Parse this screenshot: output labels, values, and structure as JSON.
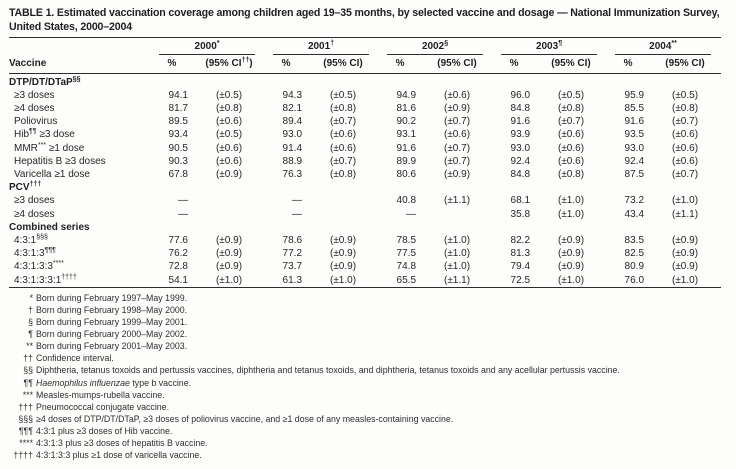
{
  "title": "TABLE 1. Estimated vaccination coverage among children aged 19–35 months, by selected vaccine and dosage — National Immunization Survey, United States, 2000–2004",
  "table": {
    "vaccine_header": "Vaccine",
    "years": [
      {
        "label": "2000",
        "sup": "*",
        "pct_label": "%",
        "ci_parts": [
          [
            "t",
            "(95% CI"
          ],
          [
            "s",
            "††"
          ],
          [
            "t",
            ")"
          ]
        ]
      },
      {
        "label": "2001",
        "sup": "†",
        "pct_label": "%",
        "ci_parts": [
          [
            "t",
            "(95% CI)"
          ]
        ]
      },
      {
        "label": "2002",
        "sup": "§",
        "pct_label": "%",
        "ci_parts": [
          [
            "t",
            "(95% CI)"
          ]
        ]
      },
      {
        "label": "2003",
        "sup": "¶",
        "pct_label": "%",
        "ci_parts": [
          [
            "t",
            "(95% CI)"
          ]
        ]
      },
      {
        "label": "2004",
        "sup": "**",
        "pct_label": "%",
        "ci_parts": [
          [
            "t",
            "(95% CI)"
          ]
        ]
      }
    ],
    "rows": [
      {
        "type": "section",
        "label_parts": [
          [
            "t",
            "DTP/DT/DTaP"
          ],
          [
            "s",
            "§§"
          ]
        ]
      },
      {
        "type": "data",
        "label_parts": [
          [
            "t",
            "≥3 doses"
          ]
        ],
        "values": [
          "94.1",
          "(±0.5)",
          "94.3",
          "(±0.5)",
          "94.9",
          "(±0.6)",
          "96.0",
          "(±0.5)",
          "95.9",
          "(±0.5)"
        ]
      },
      {
        "type": "data",
        "label_parts": [
          [
            "t",
            "≥4 doses"
          ]
        ],
        "values": [
          "81.7",
          "(±0.8)",
          "82.1",
          "(±0.8)",
          "81.6",
          "(±0.9)",
          "84.8",
          "(±0.8)",
          "85.5",
          "(±0.8)"
        ]
      },
      {
        "type": "data",
        "label_parts": [
          [
            "t",
            "Poliovirus"
          ]
        ],
        "values": [
          "89.5",
          "(±0.6)",
          "89.4",
          "(±0.7)",
          "90.2",
          "(±0.7)",
          "91.6",
          "(±0.7)",
          "91.6",
          "(±0.7)"
        ]
      },
      {
        "type": "data",
        "label_parts": [
          [
            "t",
            "Hib"
          ],
          [
            "s",
            "¶¶"
          ],
          [
            "t",
            " ≥3 dose"
          ]
        ],
        "values": [
          "93.4",
          "(±0.5)",
          "93.0",
          "(±0.6)",
          "93.1",
          "(±0.6)",
          "93.9",
          "(±0.6)",
          "93.5",
          "(±0.6)"
        ]
      },
      {
        "type": "data",
        "label_parts": [
          [
            "t",
            "MMR"
          ],
          [
            "s",
            "***"
          ],
          [
            "t",
            " ≥1 dose"
          ]
        ],
        "values": [
          "90.5",
          "(±0.6)",
          "91.4",
          "(±0.6)",
          "91.6",
          "(±0.7)",
          "93.0",
          "(±0.6)",
          "93.0",
          "(±0.6)"
        ]
      },
      {
        "type": "data",
        "label_parts": [
          [
            "t",
            "Hepatitis B ≥3 doses"
          ]
        ],
        "values": [
          "90.3",
          "(±0.6)",
          "88.9",
          "(±0.7)",
          "89.9",
          "(±0.7)",
          "92.4",
          "(±0.6)",
          "92.4",
          "(±0.6)"
        ]
      },
      {
        "type": "data",
        "label_parts": [
          [
            "t",
            "Varicella ≥1 dose"
          ]
        ],
        "values": [
          "67.8",
          "(±0.9)",
          "76.3",
          "(±0.8)",
          "80.6",
          "(±0.9)",
          "84.8",
          "(±0.8)",
          "87.5",
          "(±0.7)"
        ]
      },
      {
        "type": "section",
        "label_parts": [
          [
            "t",
            "PCV"
          ],
          [
            "s",
            "†††"
          ]
        ]
      },
      {
        "type": "data",
        "label_parts": [
          [
            "t",
            "≥3 doses"
          ]
        ],
        "values": [
          "—",
          "",
          "—",
          "",
          "40.8",
          "(±1.1)",
          "68.1",
          "(±1.0)",
          "73.2",
          "(±1.0)"
        ]
      },
      {
        "type": "data",
        "label_parts": [
          [
            "t",
            "≥4 doses"
          ]
        ],
        "values": [
          "—",
          "",
          "—",
          "",
          "—",
          "",
          "35.8",
          "(±1.0)",
          "43.4",
          "(±1.1)"
        ]
      },
      {
        "type": "section",
        "label_parts": [
          [
            "t",
            "Combined series"
          ]
        ]
      },
      {
        "type": "data",
        "label_parts": [
          [
            "t",
            "4:3:1"
          ],
          [
            "s",
            "§§§"
          ]
        ],
        "values": [
          "77.6",
          "(±0.9)",
          "78.6",
          "(±0.9)",
          "78.5",
          "(±1.0)",
          "82.2",
          "(±0.9)",
          "83.5",
          "(±0.9)"
        ]
      },
      {
        "type": "data",
        "label_parts": [
          [
            "t",
            "4:3:1:3"
          ],
          [
            "s",
            "¶¶¶"
          ]
        ],
        "values": [
          "76.2",
          "(±0.9)",
          "77.2",
          "(±0.9)",
          "77.5",
          "(±1.0)",
          "81.3",
          "(±0.9)",
          "82.5",
          "(±0.9)"
        ]
      },
      {
        "type": "data",
        "label_parts": [
          [
            "t",
            "4:3:1:3:3"
          ],
          [
            "s",
            "****"
          ]
        ],
        "values": [
          "72.8",
          "(±0.9)",
          "73.7",
          "(±0.9)",
          "74.8",
          "(±1.0)",
          "79.4",
          "(±0.9)",
          "80.9",
          "(±0.9)"
        ]
      },
      {
        "type": "data",
        "label_parts": [
          [
            "t",
            "4:3:1:3:3:1"
          ],
          [
            "s",
            "††††"
          ]
        ],
        "values": [
          "54.1",
          "(±1.0)",
          "61.3",
          "(±1.0)",
          "65.5",
          "(±1.1)",
          "72.5",
          "(±1.0)",
          "76.0",
          "(±1.0)"
        ]
      }
    ]
  },
  "footnotes": [
    {
      "marker": "*",
      "parts": [
        [
          "t",
          "Born during February 1997–May 1999."
        ]
      ]
    },
    {
      "marker": "†",
      "parts": [
        [
          "t",
          "Born during February 1998–May 2000."
        ]
      ]
    },
    {
      "marker": "§",
      "parts": [
        [
          "t",
          "Born during February 1999–May 2001."
        ]
      ]
    },
    {
      "marker": "¶",
      "parts": [
        [
          "t",
          "Born during February 2000–May 2002."
        ]
      ]
    },
    {
      "marker": "**",
      "parts": [
        [
          "t",
          "Born during February 2001–May 2003."
        ]
      ]
    },
    {
      "marker": "††",
      "parts": [
        [
          "t",
          "Confidence interval."
        ]
      ]
    },
    {
      "marker": "§§",
      "parts": [
        [
          "t",
          "Diphtheria, tetanus toxoids and pertussis vaccines, diphtheria and tetanus toxoids, and diphtheria, tetanus toxoids and any acellular pertussis vaccine."
        ]
      ]
    },
    {
      "marker": "¶¶",
      "parts": [
        [
          "i",
          "Haemophilus influenzae"
        ],
        [
          "t",
          " type b vaccine."
        ]
      ]
    },
    {
      "marker": "***",
      "parts": [
        [
          "t",
          "Measles-mumps-rubella vaccine."
        ]
      ]
    },
    {
      "marker": "†††",
      "parts": [
        [
          "t",
          "Pneumococcal conjugate vaccine."
        ]
      ]
    },
    {
      "marker": "§§§",
      "parts": [
        [
          "t",
          "≥4 doses of DTP/DT/DTaP, ≥3 doses of poliovirus vaccine, and ≥1 dose of any measles-containing vaccine."
        ]
      ]
    },
    {
      "marker": "¶¶¶",
      "parts": [
        [
          "t",
          "4:3:1 plus ≥3 doses of Hib vaccine."
        ]
      ]
    },
    {
      "marker": "****",
      "parts": [
        [
          "t",
          "4:3:1:3 plus ≥3 doses of hepatitis B vaccine."
        ]
      ]
    },
    {
      "marker": "††††",
      "parts": [
        [
          "t",
          "4:3:1:3:3 plus ≥1 dose of varicella vaccine."
        ]
      ]
    }
  ]
}
